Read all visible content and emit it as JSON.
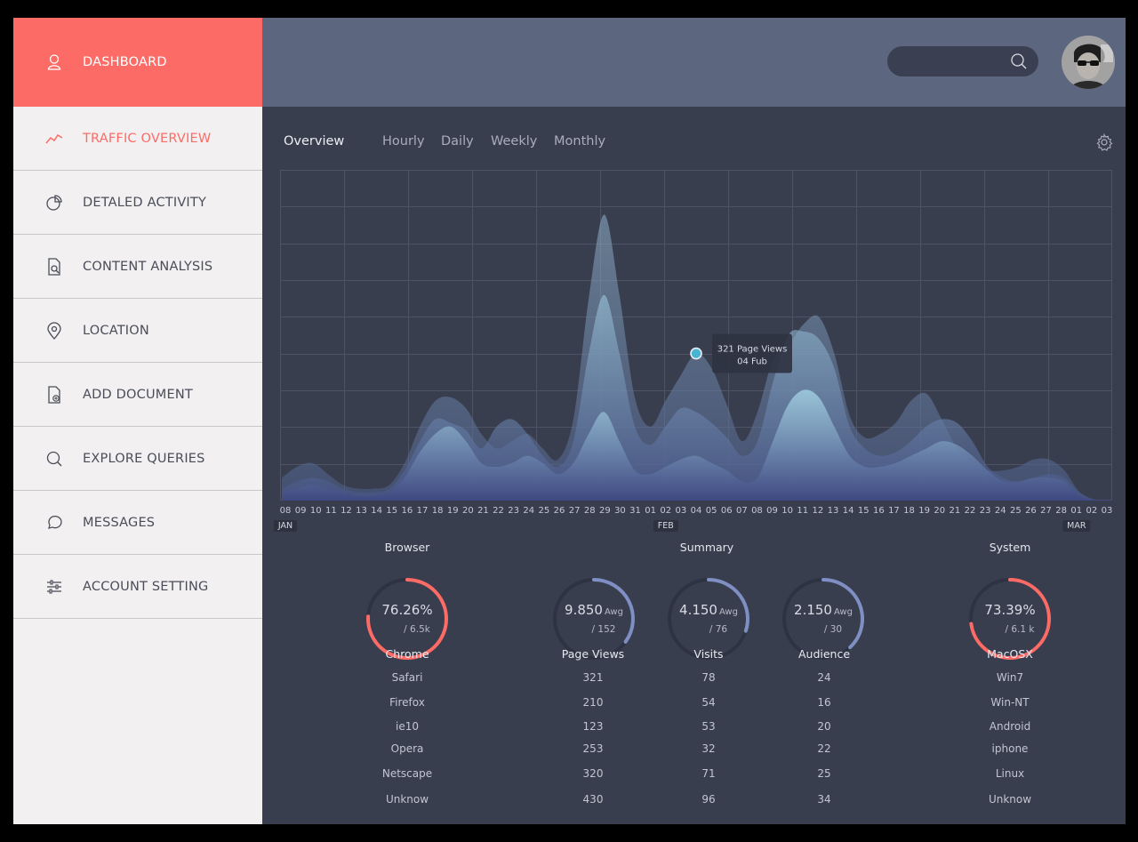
{
  "sidebar": {
    "header": {
      "label": "DASHBOARD",
      "icon": "user-icon"
    },
    "items": [
      {
        "label": "TRAFFIC OVERVIEW",
        "icon": "trend-line-icon",
        "active": true
      },
      {
        "label": "DETALED ACTIVITY",
        "icon": "pie-chart-icon"
      },
      {
        "label": "CONTENT ANALYSIS",
        "icon": "document-search-icon"
      },
      {
        "label": "LOCATION",
        "icon": "map-pin-icon"
      },
      {
        "label": "ADD DOCUMENT",
        "icon": "document-add-icon"
      },
      {
        "label": "EXPLORE QUERIES",
        "icon": "search-icon"
      },
      {
        "label": "MESSAGES",
        "icon": "chat-bubble-icon"
      },
      {
        "label": "ACCOUNT SETTING",
        "icon": "sliders-icon"
      }
    ]
  },
  "header": {
    "search_placeholder": "",
    "search_icon": "search-icon",
    "avatar_icon": "user-avatar"
  },
  "tabs": {
    "overview": "Overview",
    "hourly": "Hourly",
    "daily": "Daily",
    "weekly": "Weekly",
    "monthly": "Monthly",
    "settings_icon": "gear-icon"
  },
  "colors": {
    "accent": "#fd6b66",
    "sidebar_bg": "#f2f0f1",
    "topbar_bg": "#5c667e",
    "panel_bg": "#393e4f",
    "gauge_blue": "#7f8fc4"
  },
  "chart_data": {
    "type": "area",
    "x": [
      "08",
      "09",
      "10",
      "11",
      "12",
      "13",
      "14",
      "15",
      "16",
      "17",
      "18",
      "19",
      "20",
      "21",
      "22",
      "23",
      "24",
      "25",
      "26",
      "27",
      "28",
      "29",
      "30",
      "31",
      "01",
      "02",
      "03",
      "04",
      "05",
      "06",
      "07",
      "08",
      "09",
      "10",
      "11",
      "12",
      "13",
      "14",
      "15",
      "16",
      "17",
      "18",
      "19",
      "20",
      "21",
      "22",
      "23",
      "24",
      "25",
      "26",
      "27",
      "28",
      "01",
      "02",
      "03"
    ],
    "month_labels": [
      {
        "label": "JAN",
        "at": "08"
      },
      {
        "label": "FEB",
        "at": "02"
      },
      {
        "label": "MAR",
        "at": "02"
      }
    ],
    "ylim": [
      0,
      9
    ],
    "grid": true,
    "series": [
      {
        "values": [
          0.6,
          0.9,
          1.0,
          0.7,
          0.4,
          0.3,
          0.3,
          0.4,
          1.0,
          2.0,
          2.7,
          2.8,
          2.5,
          1.8,
          1.4,
          1.6,
          1.8,
          1.4,
          1.1,
          2.2,
          5.5,
          7.8,
          5.6,
          2.8,
          2.0,
          2.7,
          3.4,
          4.0,
          3.6,
          2.6,
          1.6,
          2.4,
          3.8,
          4.2,
          4.8,
          5.0,
          4.0,
          2.3,
          1.7,
          1.8,
          2.1,
          2.7,
          2.9,
          2.2,
          1.4,
          1.0,
          0.8,
          0.8,
          0.9,
          1.1,
          1.1,
          0.8,
          0.2,
          0,
          0
        ]
      },
      {
        "values": [
          0.3,
          0.5,
          0.6,
          0.5,
          0.3,
          0.2,
          0.2,
          0.3,
          0.8,
          1.6,
          2.2,
          2.1,
          1.9,
          1.4,
          2.0,
          2.2,
          1.8,
          1.2,
          0.9,
          1.6,
          4.0,
          5.6,
          4.0,
          2.0,
          1.5,
          2.0,
          2.5,
          2.4,
          2.1,
          1.7,
          1.2,
          1.6,
          3.2,
          4.5,
          4.6,
          4.4,
          3.6,
          2.0,
          1.4,
          1.2,
          1.3,
          1.6,
          2.0,
          2.2,
          2.1,
          1.6,
          0.9,
          0.6,
          0.5,
          0.6,
          0.7,
          0.6,
          0.2,
          0,
          0
        ]
      },
      {
        "values": [
          0.2,
          0.3,
          0.4,
          0.3,
          0.2,
          0.1,
          0.1,
          0.2,
          0.6,
          1.3,
          1.8,
          2.0,
          1.6,
          1.0,
          0.9,
          1.0,
          1.2,
          1.0,
          0.7,
          1.0,
          1.8,
          2.4,
          1.6,
          0.8,
          0.7,
          0.9,
          1.1,
          1.2,
          1.0,
          0.8,
          0.5,
          0.6,
          1.6,
          2.6,
          3.0,
          2.8,
          2.0,
          1.2,
          0.9,
          0.9,
          1.0,
          1.2,
          1.4,
          1.6,
          1.5,
          1.2,
          0.8,
          0.5,
          0.5,
          0.6,
          0.6,
          0.5,
          0.1,
          0,
          0
        ]
      }
    ],
    "tooltip": {
      "line1": "321 Page Views",
      "line2": "04 Fub",
      "at": "04"
    }
  },
  "stats": {
    "browser": {
      "title": "Browser",
      "gauge": {
        "value": "76.26%",
        "sub": "/ 6.5k",
        "fraction": 0.76,
        "color": "#fd6b66"
      },
      "header": "Chrome",
      "rows": [
        "Safari",
        "Firefox",
        "ie10",
        "Opera",
        "Netscape",
        "Unknow"
      ]
    },
    "summary": {
      "title": "Summary",
      "gauges": [
        {
          "value": "9.850",
          "unit": "Awg",
          "sub": "/ 152",
          "fraction": 0.35
        },
        {
          "value": "4.150",
          "unit": "Awg",
          "sub": "/ 76",
          "fraction": 0.3
        },
        {
          "value": "2.150",
          "unit": "Awg",
          "sub": "/ 30",
          "fraction": 0.38
        }
      ],
      "headers": [
        "Page Views",
        "Visits",
        "Audience"
      ],
      "page_views": [
        "321",
        "210",
        "123",
        "253",
        "320",
        "430"
      ],
      "visits": [
        "78",
        "54",
        "53",
        "32",
        "71",
        "96"
      ],
      "audience": [
        "24",
        "16",
        "20",
        "22",
        "25",
        "34"
      ]
    },
    "system": {
      "title": "System",
      "gauge": {
        "value": "73.39%",
        "sub": "/ 6.1 k",
        "fraction": 0.73,
        "color": "#fd6b66"
      },
      "header": "MacOSX",
      "rows": [
        "Win7",
        "Win-NT",
        "Android",
        "iphone",
        "Linux",
        "Unknow"
      ]
    }
  }
}
